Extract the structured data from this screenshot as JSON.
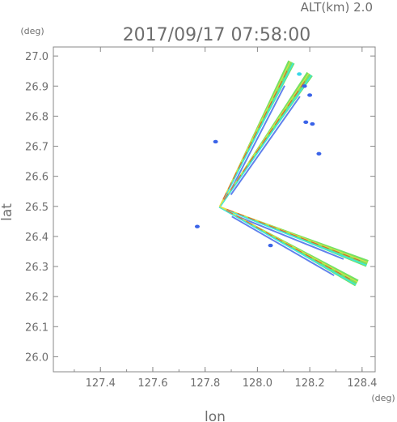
{
  "header": {
    "altitude": "ALT(km)  2.0",
    "datetime": "2017/09/17 07:58:00"
  },
  "chart_data": {
    "type": "scatter",
    "xlabel": "lon",
    "ylabel": "lat",
    "x_unit": "(deg)",
    "y_unit": "(deg)",
    "xlim": [
      127.22,
      128.45
    ],
    "ylim": [
      25.95,
      27.03
    ],
    "x_ticks": [
      "127.4",
      "127.6",
      "127.8",
      "128.0",
      "128.2",
      "128.4"
    ],
    "y_ticks": [
      "26.0",
      "26.1",
      "26.2",
      "26.3",
      "26.4",
      "26.5",
      "26.6",
      "26.7",
      "26.8",
      "26.9",
      "27.0"
    ],
    "radar_origin": {
      "lon": 127.855,
      "lat": 26.5
    },
    "beams": [
      {
        "name": "",
        "end": {
          "lon": 128.13,
          "lat": 26.98
        }
      },
      {
        "name": "",
        "end": {
          "lon": 128.2,
          "lat": 26.94
        }
      },
      {
        "name": "",
        "end": {
          "lon": 128.42,
          "lat": 26.31
        }
      },
      {
        "name": "",
        "end": {
          "lon": 128.38,
          "lat": 26.245
        }
      }
    ],
    "echo_cells": [
      {
        "lon": 128.18,
        "lat": 26.9,
        "color": "#3a63e8"
      },
      {
        "lon": 128.2,
        "lat": 26.87,
        "color": "#3a63e8"
      },
      {
        "lon": 128.21,
        "lat": 26.774,
        "color": "#3a63e8"
      },
      {
        "lon": 128.185,
        "lat": 26.78,
        "color": "#3a63e8"
      },
      {
        "lon": 128.235,
        "lat": 26.675,
        "color": "#3a63e8"
      },
      {
        "lon": 127.77,
        "lat": 26.433,
        "color": "#3a63e8"
      },
      {
        "lon": 128.05,
        "lat": 26.37,
        "color": "#3a63e8"
      },
      {
        "lon": 127.84,
        "lat": 26.715,
        "color": "#3a63e8"
      },
      {
        "lon": 128.16,
        "lat": 26.94,
        "color": "#39d8e8"
      }
    ],
    "grid": false
  },
  "colors": {
    "axis": "#888888",
    "text": "#6e6e6e",
    "beam_green": "#6ee05a",
    "beam_cyan": "#3ce6dc",
    "beam_blue": "#3a63e8",
    "beam_red": "#e8412e",
    "beam_yellow": "#e8e040"
  }
}
